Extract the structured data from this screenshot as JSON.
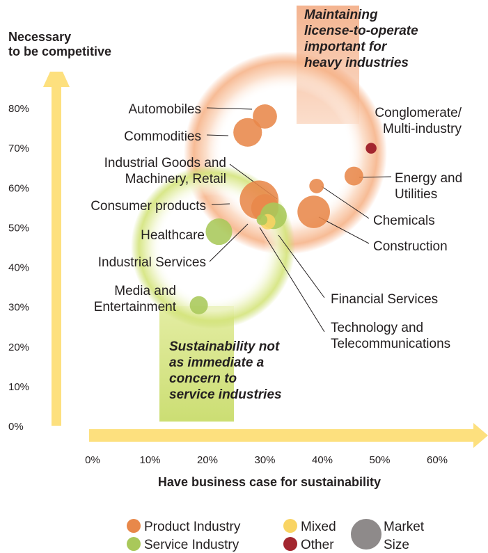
{
  "chart_data": {
    "type": "scatter",
    "title": "",
    "xlabel": "Have business case for sustainability",
    "ylabel_lines": [
      "Necessary",
      "to be competitive"
    ],
    "x_ticks": [
      "0%",
      "10%",
      "20%",
      "30%",
      "40%",
      "50%",
      "60%"
    ],
    "y_ticks": [
      "0%",
      "10%",
      "20%",
      "30%",
      "40%",
      "50%",
      "60%",
      "70%",
      "80%"
    ],
    "xlim": [
      0,
      60
    ],
    "ylim": [
      0,
      80
    ],
    "colors": {
      "product": "#e8884a",
      "service": "#a9c85a",
      "mixed": "#f9d463",
      "other": "#a3262f",
      "market_size": "#8e8a8a",
      "arrow": "#fde07e"
    },
    "points": [
      {
        "label": [
          "Automobiles"
        ],
        "x": 30,
        "y": 78,
        "size": 2.5,
        "group": "product"
      },
      {
        "label": [
          "Commodities"
        ],
        "x": 27,
        "y": 74,
        "size": 3.5,
        "group": "product"
      },
      {
        "label": [
          "Conglomerate/",
          "Multi-industry"
        ],
        "x": 48.5,
        "y": 70,
        "size": 0.5,
        "group": "other"
      },
      {
        "label": [
          "Energy and",
          "Utilities"
        ],
        "x": 45.5,
        "y": 63,
        "size": 1.5,
        "group": "product"
      },
      {
        "label": [
          "Industrial Goods and",
          "Machinery, Retail"
        ],
        "x": 30,
        "y": 55,
        "size": 3.2,
        "group": "product"
      },
      {
        "label": [
          "Consumer products"
        ],
        "x": 29,
        "y": 57,
        "size": 6.4,
        "group": "product"
      },
      {
        "label": [
          "Chemicals"
        ],
        "x": 39,
        "y": 60.5,
        "size": 0.9,
        "group": "product"
      },
      {
        "label": [
          "Construction"
        ],
        "x": 38.5,
        "y": 54,
        "size": 4.5,
        "group": "product"
      },
      {
        "label": [
          "Healthcare"
        ],
        "x": 22,
        "y": 49,
        "size": 3.0,
        "group": "service"
      },
      {
        "label": [
          "Industrial Services"
        ],
        "x": 29.5,
        "y": 52,
        "size": 0.5,
        "group": "service"
      },
      {
        "label": [
          "Media and",
          "Entertainment"
        ],
        "x": 18.5,
        "y": 30.5,
        "size": 1.4,
        "group": "service"
      },
      {
        "label": [
          "Financial Services"
        ],
        "x": 31.5,
        "y": 53,
        "size": 3.0,
        "group": "service"
      },
      {
        "label": [
          "Technology and",
          "Telecommunications"
        ],
        "x": 30.5,
        "y": 51.5,
        "size": 1.0,
        "group": "mixed"
      }
    ],
    "annotations": [
      {
        "lines": [
          "Maintaining",
          "license-to-operate",
          "important for",
          "heavy industries"
        ]
      },
      {
        "lines": [
          "Sustainability not",
          "as immediate a",
          "concern to",
          "service industries"
        ]
      }
    ],
    "legend": [
      {
        "key": "product",
        "label": "Product Industry"
      },
      {
        "key": "mixed",
        "label": "Mixed"
      },
      {
        "key": "market_size",
        "label_lines": [
          "Market",
          "Size"
        ]
      },
      {
        "key": "service",
        "label": "Service Industry"
      },
      {
        "key": "other",
        "label": "Other"
      }
    ]
  }
}
